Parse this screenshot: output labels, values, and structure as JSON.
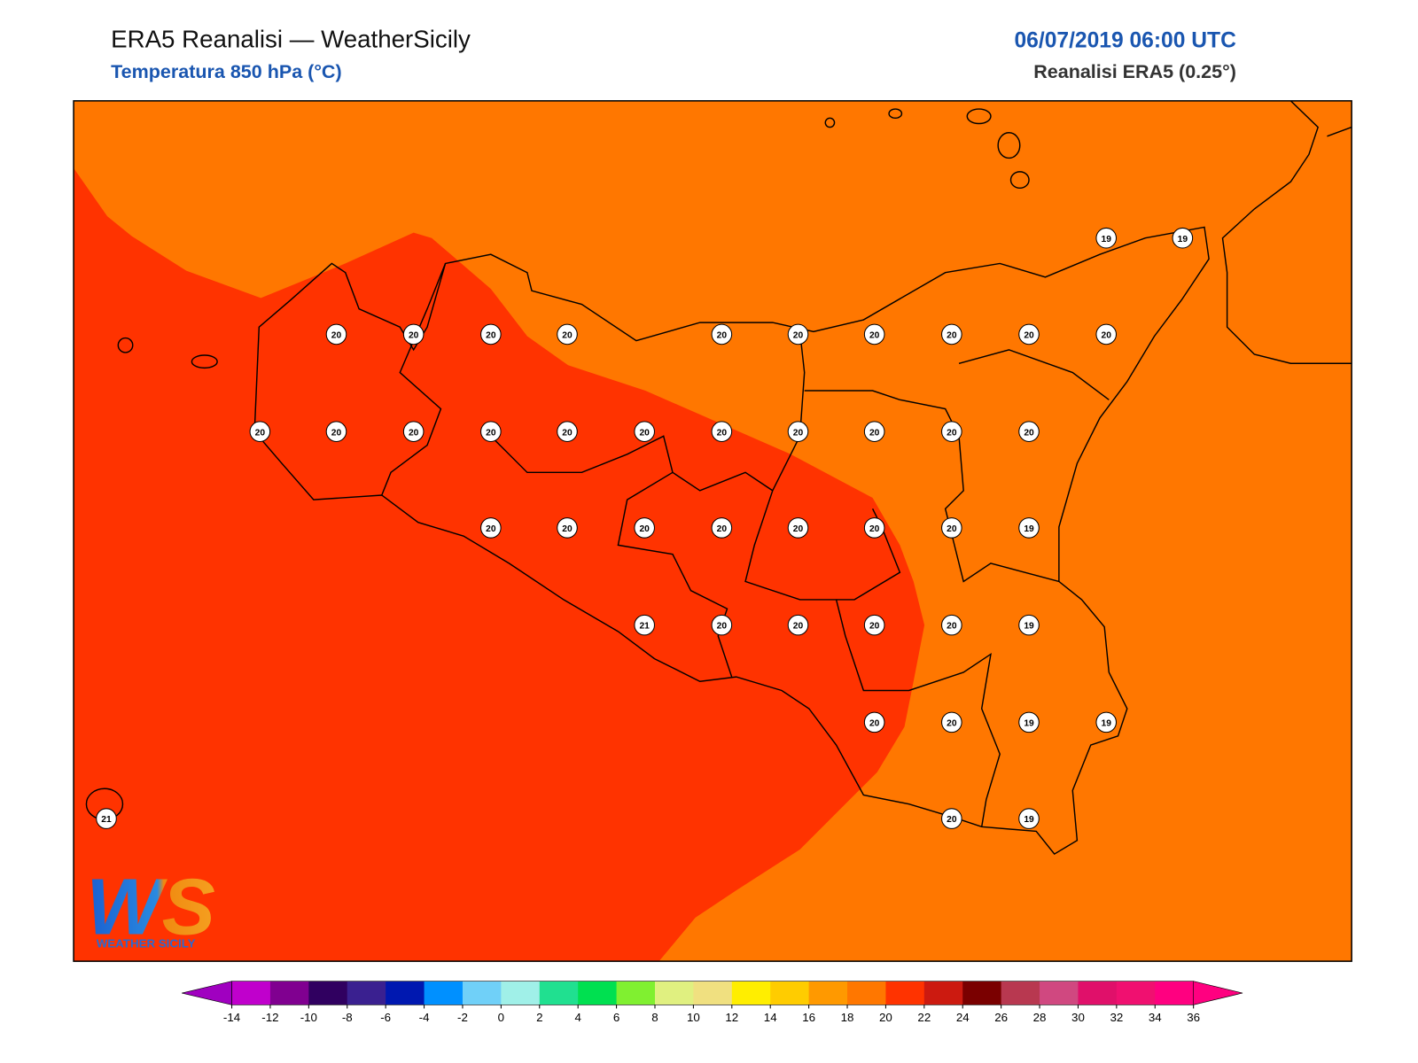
{
  "header": {
    "title": "ERA5 Reanalisi — WeatherSicily",
    "subtitle": "Temperatura 850 hPa (°C)",
    "datetime": "06/07/2019 06:00 UTC",
    "source": "Reanalisi ERA5 (0.25°)"
  },
  "map": {
    "fields": {
      "warm": "#ff3300",
      "base": "#ff7700"
    },
    "labels": [
      19,
      19,
      20,
      20,
      20,
      20,
      20,
      20,
      20,
      20,
      20,
      20,
      20,
      20,
      20,
      20,
      20,
      20,
      20,
      20,
      20,
      20,
      20,
      20,
      20,
      20,
      20,
      20,
      20,
      20,
      19,
      21,
      20,
      20,
      20,
      20,
      19,
      20,
      20,
      19,
      19,
      21,
      20,
      19
    ]
  },
  "colorbar": {
    "ticks": [
      -14,
      -12,
      -10,
      -8,
      -6,
      -4,
      -2,
      0,
      2,
      4,
      6,
      8,
      10,
      12,
      14,
      16,
      18,
      20,
      22,
      24,
      26,
      28,
      30,
      32,
      34,
      36
    ],
    "under": "#a000c0",
    "over": "#ff0080",
    "colors": [
      "#c000cc",
      "#800090",
      "#300060",
      "#3a2090",
      "#0018b0",
      "#0090ff",
      "#70d0f8",
      "#a0f0e8",
      "#20e090",
      "#00e050",
      "#80f030",
      "#e0f080",
      "#f0e080",
      "#ffee00",
      "#ffcc00",
      "#ff9900",
      "#ff7700",
      "#ff3300",
      "#cc1a10",
      "#7a0000",
      "#b83850",
      "#d04880",
      "#e0106a",
      "#f01070",
      "#ff0080"
    ]
  },
  "logo": {
    "text": "WS",
    "subtext": "WEATHER SICILY"
  }
}
